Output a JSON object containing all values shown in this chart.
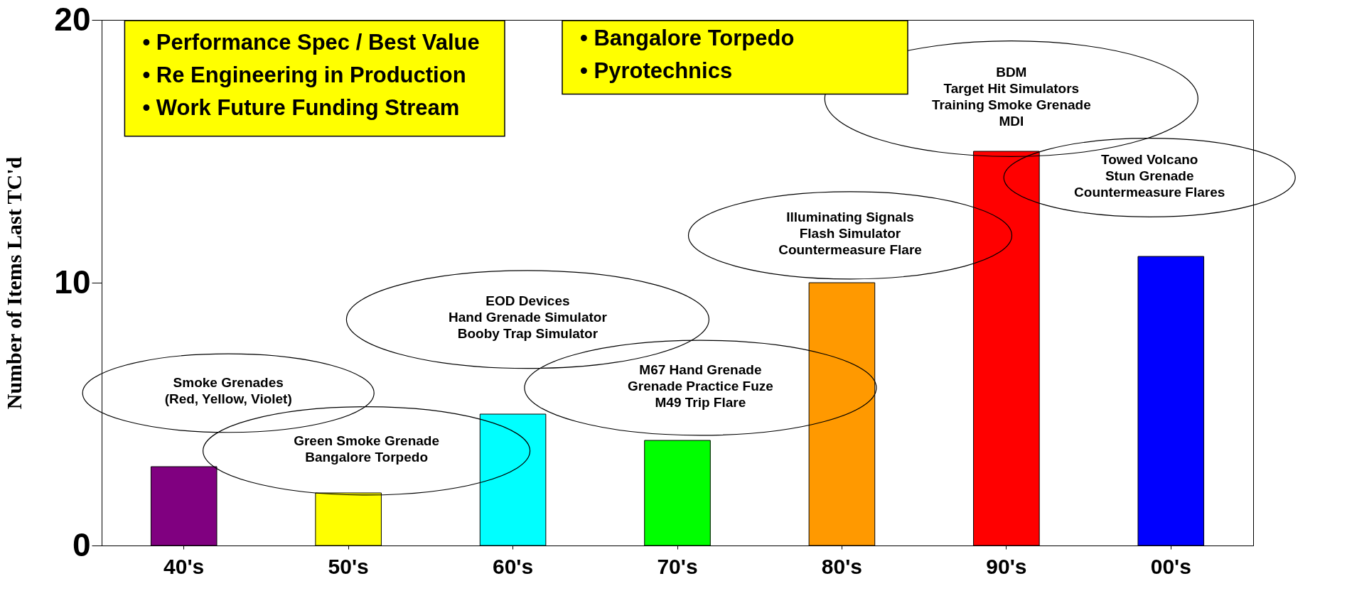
{
  "chart_data": {
    "type": "bar",
    "ylabel": "Number of Items Last TC'd",
    "categories": [
      "40's",
      "50's",
      "60's",
      "70's",
      "80's",
      "90's",
      "00's"
    ],
    "values": [
      3,
      2,
      5,
      4,
      10,
      15,
      11
    ],
    "colors": [
      "#800080",
      "#ffff00",
      "#00ffff",
      "#00ff00",
      "#ff9900",
      "#ff0000",
      "#0000ff"
    ],
    "ylim": [
      0,
      20
    ],
    "yticks": [
      0,
      10,
      20
    ],
    "grid": false,
    "annotations": [
      "• Performance Spec / Best Value\n• Re Engineering in Production\n• Work Future Funding Stream",
      "• Bangalore Torpedo\n• Pyrotechnics",
      "Smoke Grenades\n(Red, Yellow, Violet)",
      "Green Smoke Grenade\nBangalore Torpedo",
      "EOD Devices\nHand Grenade Simulator\nBooby Trap Simulator",
      "M67 Hand Grenade\nGrenade Practice Fuze\nM49 Trip Flare",
      "Illuminating Signals\nFlash Simulator\nCountermeasure Flare",
      "BDM\nTarget Hit Simulators\nTraining Smoke Grenade\nMDI",
      "Towed Volcano\nStun Grenade\nCountermeasure Flares"
    ]
  }
}
